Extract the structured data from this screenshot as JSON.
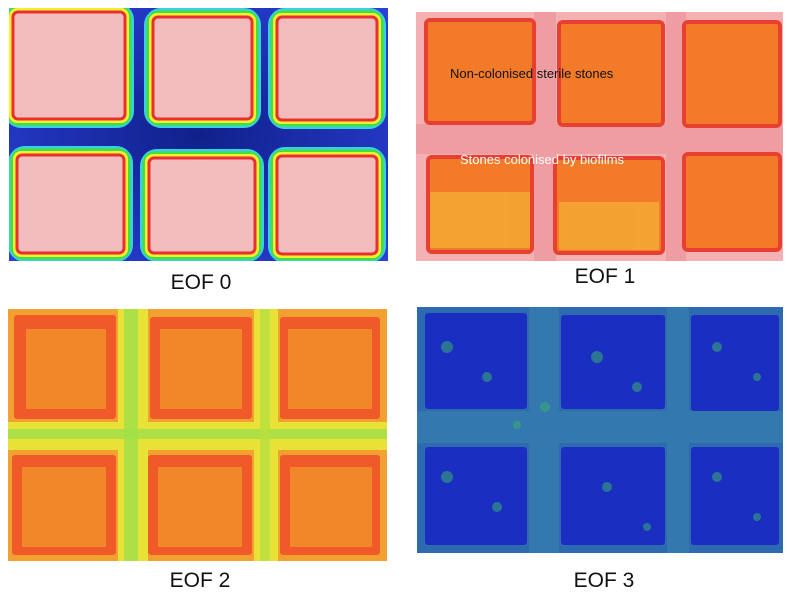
{
  "panels": [
    {
      "caption": "EOF 0",
      "labels": []
    },
    {
      "caption": "EOF 1",
      "labels": [
        "Non-colonised sterile stones",
        "Stones colonised by biofilms"
      ]
    },
    {
      "caption": "EOF 2",
      "labels": []
    },
    {
      "caption": "EOF 3",
      "labels": []
    }
  ],
  "colors": {
    "eof0_background": "#1a36c8",
    "eof0_stone": "#f0b4b4",
    "eof1_background": "#f2a6a8",
    "eof1_stone": "#f07a28",
    "eof2_background": "#f0e030",
    "eof2_stone": "#ef5a26",
    "eof3_background": "#2f6fa8",
    "eof3_stone": "#1c2fc0"
  }
}
